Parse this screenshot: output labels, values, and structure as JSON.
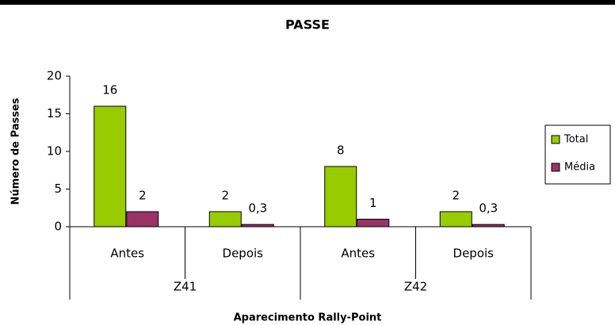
{
  "chart_data": {
    "type": "bar",
    "title": "PASSE",
    "x_label": "Aparecimento Rally-Point",
    "y_label": "Número de Passes",
    "categories": [
      "Antes",
      "Depois",
      "Antes",
      "Depois"
    ],
    "groups": [
      "Z41",
      "Z42"
    ],
    "series": [
      {
        "name": "Total",
        "color": "#99cc00",
        "values": [
          16,
          2,
          8,
          2
        ]
      },
      {
        "name": "Média",
        "color": "#993366",
        "values": [
          2,
          0.3,
          1,
          0.3
        ],
        "value_labels": [
          "2",
          "0,3",
          "1",
          "0,3"
        ]
      }
    ],
    "ylim": [
      0,
      20
    ],
    "yticks": [
      0,
      5,
      10,
      15,
      20
    ],
    "grid": false,
    "legend": "right"
  }
}
